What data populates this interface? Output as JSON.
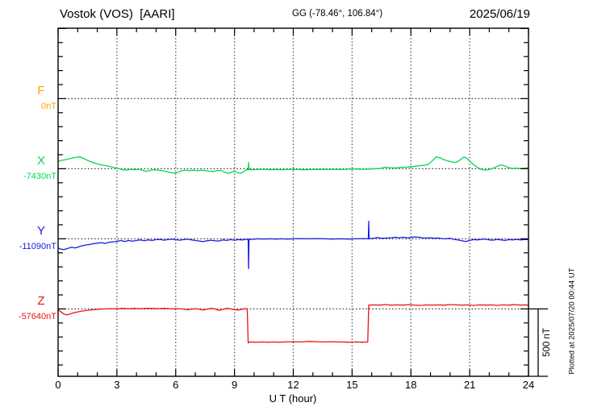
{
  "header": {
    "station_title": "Vostok (VOS)  [AARI]",
    "gg_coords": "GG (-78.46°, 106.84°)",
    "date": "2025/06/19"
  },
  "channels": [
    {
      "id": "F",
      "label": "F",
      "value_label": "0nT",
      "color": "#ffa500"
    },
    {
      "id": "X",
      "label": "X",
      "value_label": "-7430nT",
      "color": "#00d84f"
    },
    {
      "id": "Y",
      "label": "Y",
      "value_label": "-11090nT",
      "color": "#1a1ae6"
    },
    {
      "id": "Z",
      "label": "Z",
      "value_label": "-57640nT",
      "color": "#ee1111"
    }
  ],
  "axis": {
    "xlabel": "U T (hour)",
    "x_tick_labels": [
      "0",
      "3",
      "6",
      "9",
      "12",
      "15",
      "18",
      "21",
      "24"
    ]
  },
  "scale_bar": {
    "label": "500 nT",
    "nT": 500
  },
  "footer_note": "Plotted at 2025/07/20 00:44 UT",
  "chart_data": {
    "type": "line",
    "title": "Vostok (VOS) [AARI] magnetogram 2025/06/19",
    "xlabel": "U T (hour)",
    "x_range": [
      0,
      24
    ],
    "x_major_tick_step": 3,
    "x_minor_tick_step": 1,
    "y_tick_nT": 100,
    "scale_bar_nT": 500,
    "grid": "dotted",
    "baselines_nT": {
      "F": 0,
      "X": -7430,
      "Y": -11090,
      "Z": -57640
    },
    "note": "points are [hour UT, offset in nT from channel baseline]; F channel has no plotted data",
    "series": [
      {
        "name": "F",
        "points": []
      },
      {
        "name": "X",
        "points": [
          [
            0,
            55
          ],
          [
            0.2,
            62
          ],
          [
            0.4,
            68
          ],
          [
            0.6,
            74
          ],
          [
            0.8,
            82
          ],
          [
            1.0,
            86
          ],
          [
            1.1,
            88
          ],
          [
            1.3,
            76
          ],
          [
            1.5,
            62
          ],
          [
            1.7,
            50
          ],
          [
            1.9,
            40
          ],
          [
            2.1,
            32
          ],
          [
            2.3,
            26
          ],
          [
            2.6,
            18
          ],
          [
            2.9,
            8
          ],
          [
            3.1,
            0
          ],
          [
            3.3,
            -8
          ],
          [
            3.5,
            -10
          ],
          [
            3.7,
            -4
          ],
          [
            3.9,
            -8
          ],
          [
            4.1,
            -4
          ],
          [
            4.3,
            -10
          ],
          [
            4.5,
            -20
          ],
          [
            4.7,
            -12
          ],
          [
            4.9,
            -8
          ],
          [
            5.1,
            -10
          ],
          [
            5.3,
            -14
          ],
          [
            5.5,
            -20
          ],
          [
            5.7,
            -28
          ],
          [
            5.9,
            -32
          ],
          [
            6.1,
            -28
          ],
          [
            6.3,
            -14
          ],
          [
            6.5,
            -10
          ],
          [
            6.7,
            -14
          ],
          [
            6.9,
            -10
          ],
          [
            7.1,
            -14
          ],
          [
            7.3,
            -10
          ],
          [
            7.5,
            -14
          ],
          [
            7.7,
            -18
          ],
          [
            7.9,
            -20
          ],
          [
            8.1,
            -14
          ],
          [
            8.3,
            -12
          ],
          [
            8.5,
            -26
          ],
          [
            8.7,
            -34
          ],
          [
            8.9,
            -24
          ],
          [
            9.0,
            -18
          ],
          [
            9.15,
            -30
          ],
          [
            9.3,
            -34
          ],
          [
            9.45,
            -24
          ],
          [
            9.55,
            -12
          ],
          [
            9.65,
            -8
          ],
          [
            9.7,
            -8
          ],
          [
            9.72,
            46
          ],
          [
            9.74,
            -6
          ],
          [
            9.9,
            -8
          ],
          [
            10.2,
            -6
          ],
          [
            10.5,
            -4
          ],
          [
            10.8,
            -8
          ],
          [
            11.1,
            -6
          ],
          [
            11.4,
            -8
          ],
          [
            11.7,
            -6
          ],
          [
            12,
            -4
          ],
          [
            12.5,
            -8
          ],
          [
            13,
            -6
          ],
          [
            13.5,
            -6
          ],
          [
            14,
            -4
          ],
          [
            14.5,
            -6
          ],
          [
            15,
            -2
          ],
          [
            15.5,
            -4
          ],
          [
            16,
            -2
          ],
          [
            16.4,
            2
          ],
          [
            16.7,
            12
          ],
          [
            16.9,
            8
          ],
          [
            17.2,
            6
          ],
          [
            17.5,
            10
          ],
          [
            17.8,
            12
          ],
          [
            18.1,
            16
          ],
          [
            18.4,
            22
          ],
          [
            18.7,
            26
          ],
          [
            18.9,
            34
          ],
          [
            19.1,
            60
          ],
          [
            19.3,
            88
          ],
          [
            19.5,
            80
          ],
          [
            19.7,
            66
          ],
          [
            19.9,
            58
          ],
          [
            20.1,
            50
          ],
          [
            20.3,
            46
          ],
          [
            20.5,
            64
          ],
          [
            20.7,
            86
          ],
          [
            20.85,
            78
          ],
          [
            21.0,
            56
          ],
          [
            21.2,
            30
          ],
          [
            21.4,
            10
          ],
          [
            21.6,
            -6
          ],
          [
            21.8,
            -10
          ],
          [
            22.0,
            -6
          ],
          [
            22.2,
            4
          ],
          [
            22.4,
            18
          ],
          [
            22.6,
            28
          ],
          [
            22.8,
            20
          ],
          [
            23.0,
            8
          ],
          [
            23.2,
            2
          ],
          [
            23.4,
            4
          ],
          [
            23.6,
            2
          ],
          [
            23.8,
            4
          ],
          [
            24,
            8
          ]
        ]
      },
      {
        "name": "Y",
        "points": [
          [
            0,
            -68
          ],
          [
            0.15,
            -76
          ],
          [
            0.3,
            -80
          ],
          [
            0.5,
            -70
          ],
          [
            0.7,
            -62
          ],
          [
            0.85,
            -68
          ],
          [
            1.0,
            -62
          ],
          [
            1.2,
            -52
          ],
          [
            1.4,
            -46
          ],
          [
            1.6,
            -42
          ],
          [
            1.8,
            -36
          ],
          [
            2.0,
            -32
          ],
          [
            2.2,
            -28
          ],
          [
            2.4,
            -34
          ],
          [
            2.6,
            -26
          ],
          [
            2.8,
            -22
          ],
          [
            3.0,
            -20
          ],
          [
            3.2,
            -12
          ],
          [
            3.4,
            -20
          ],
          [
            3.6,
            -12
          ],
          [
            3.8,
            -18
          ],
          [
            4.0,
            -12
          ],
          [
            4.2,
            -8
          ],
          [
            4.4,
            -14
          ],
          [
            4.6,
            -8
          ],
          [
            4.8,
            -12
          ],
          [
            5.0,
            -6
          ],
          [
            5.2,
            -4
          ],
          [
            5.4,
            -10
          ],
          [
            5.6,
            -6
          ],
          [
            5.8,
            -2
          ],
          [
            6.0,
            -6
          ],
          [
            6.2,
            -10
          ],
          [
            6.4,
            -6
          ],
          [
            6.6,
            -2
          ],
          [
            6.8,
            -8
          ],
          [
            7.0,
            -12
          ],
          [
            7.2,
            -16
          ],
          [
            7.4,
            -20
          ],
          [
            7.6,
            -14
          ],
          [
            7.8,
            -10
          ],
          [
            8.0,
            -14
          ],
          [
            8.2,
            -16
          ],
          [
            8.4,
            -8
          ],
          [
            8.6,
            -12
          ],
          [
            8.8,
            -6
          ],
          [
            9.0,
            -10
          ],
          [
            9.2,
            -6
          ],
          [
            9.4,
            -8
          ],
          [
            9.6,
            -4
          ],
          [
            9.7,
            -4
          ],
          [
            9.72,
            -220
          ],
          [
            9.74,
            -2
          ],
          [
            9.9,
            -4
          ],
          [
            10.2,
            0
          ],
          [
            10.5,
            -2
          ],
          [
            10.8,
            0
          ],
          [
            11.1,
            -2
          ],
          [
            11.4,
            0
          ],
          [
            11.7,
            -2
          ],
          [
            12,
            0
          ],
          [
            12.4,
            2
          ],
          [
            12.8,
            0
          ],
          [
            13.2,
            2
          ],
          [
            13.6,
            0
          ],
          [
            14,
            -2
          ],
          [
            14.4,
            0
          ],
          [
            14.8,
            -2
          ],
          [
            15.2,
            0
          ],
          [
            15.6,
            2
          ],
          [
            15.83,
            0
          ],
          [
            15.85,
            130
          ],
          [
            15.87,
            0
          ],
          [
            16.1,
            4
          ],
          [
            16.3,
            10
          ],
          [
            16.5,
            4
          ],
          [
            16.8,
            6
          ],
          [
            17.0,
            8
          ],
          [
            17.2,
            12
          ],
          [
            17.4,
            8
          ],
          [
            17.6,
            12
          ],
          [
            17.8,
            8
          ],
          [
            18.0,
            10
          ],
          [
            18.2,
            14
          ],
          [
            18.4,
            12
          ],
          [
            18.6,
            8
          ],
          [
            18.8,
            6
          ],
          [
            19.0,
            8
          ],
          [
            19.2,
            4
          ],
          [
            19.4,
            6
          ],
          [
            19.6,
            2
          ],
          [
            19.8,
            0
          ],
          [
            20.0,
            4
          ],
          [
            20.2,
            -4
          ],
          [
            20.4,
            -8
          ],
          [
            20.6,
            -14
          ],
          [
            20.8,
            -20
          ],
          [
            21.0,
            -12
          ],
          [
            21.2,
            -6
          ],
          [
            21.4,
            -8
          ],
          [
            21.6,
            -4
          ],
          [
            21.8,
            -2
          ],
          [
            22.0,
            -8
          ],
          [
            22.2,
            -10
          ],
          [
            22.4,
            -4
          ],
          [
            22.6,
            -8
          ],
          [
            22.8,
            -12
          ],
          [
            23.0,
            -6
          ],
          [
            23.2,
            -8
          ],
          [
            23.4,
            -4
          ],
          [
            23.6,
            -8
          ],
          [
            23.8,
            -6
          ],
          [
            24,
            -6
          ]
        ]
      },
      {
        "name": "Z",
        "points": [
          [
            0,
            -4
          ],
          [
            0.15,
            -22
          ],
          [
            0.3,
            -38
          ],
          [
            0.45,
            -44
          ],
          [
            0.6,
            -38
          ],
          [
            0.8,
            -28
          ],
          [
            1.0,
            -22
          ],
          [
            1.2,
            -16
          ],
          [
            1.5,
            -10
          ],
          [
            1.8,
            -6
          ],
          [
            2.1,
            -2
          ],
          [
            2.4,
            0
          ],
          [
            2.7,
            2
          ],
          [
            3.0,
            2
          ],
          [
            3.3,
            4
          ],
          [
            3.6,
            2
          ],
          [
            3.9,
            4
          ],
          [
            4.2,
            2
          ],
          [
            4.5,
            4
          ],
          [
            4.8,
            4
          ],
          [
            5.1,
            2
          ],
          [
            5.4,
            4
          ],
          [
            5.7,
            2
          ],
          [
            6.0,
            2
          ],
          [
            6.3,
            0
          ],
          [
            6.6,
            -6
          ],
          [
            6.8,
            -2
          ],
          [
            7.0,
            2
          ],
          [
            7.2,
            -2
          ],
          [
            7.4,
            -8
          ],
          [
            7.6,
            -2
          ],
          [
            7.8,
            4
          ],
          [
            8.0,
            0
          ],
          [
            8.2,
            -10
          ],
          [
            8.4,
            -4
          ],
          [
            8.6,
            4
          ],
          [
            8.8,
            0
          ],
          [
            9.0,
            -6
          ],
          [
            9.2,
            -8
          ],
          [
            9.4,
            -2
          ],
          [
            9.55,
            2
          ],
          [
            9.65,
            0
          ],
          [
            9.7,
            -250
          ],
          [
            9.8,
            -244
          ],
          [
            10.1,
            -246
          ],
          [
            10.4,
            -244
          ],
          [
            10.7,
            -246
          ],
          [
            11.0,
            -244
          ],
          [
            11.3,
            -246
          ],
          [
            11.6,
            -244
          ],
          [
            12.0,
            -242
          ],
          [
            12.4,
            -244
          ],
          [
            12.8,
            -240
          ],
          [
            13.2,
            -242
          ],
          [
            13.6,
            -244
          ],
          [
            14.0,
            -242
          ],
          [
            14.4,
            -244
          ],
          [
            14.8,
            -246
          ],
          [
            15.2,
            -244
          ],
          [
            15.5,
            -246
          ],
          [
            15.8,
            -244
          ],
          [
            15.85,
            28
          ],
          [
            16.1,
            30
          ],
          [
            16.4,
            28
          ],
          [
            16.7,
            32
          ],
          [
            17.0,
            28
          ],
          [
            17.3,
            30
          ],
          [
            17.6,
            28
          ],
          [
            17.9,
            32
          ],
          [
            18.2,
            28
          ],
          [
            18.5,
            26
          ],
          [
            18.8,
            30
          ],
          [
            19.1,
            28
          ],
          [
            19.4,
            30
          ],
          [
            19.7,
            28
          ],
          [
            20.0,
            32
          ],
          [
            20.3,
            30
          ],
          [
            20.6,
            28
          ],
          [
            20.9,
            30
          ],
          [
            21.2,
            26
          ],
          [
            21.5,
            30
          ],
          [
            21.8,
            28
          ],
          [
            22.1,
            30
          ],
          [
            22.4,
            26
          ],
          [
            22.7,
            30
          ],
          [
            23.0,
            28
          ],
          [
            23.3,
            32
          ],
          [
            23.6,
            28
          ],
          [
            23.8,
            30
          ],
          [
            24,
            28
          ]
        ]
      }
    ]
  }
}
